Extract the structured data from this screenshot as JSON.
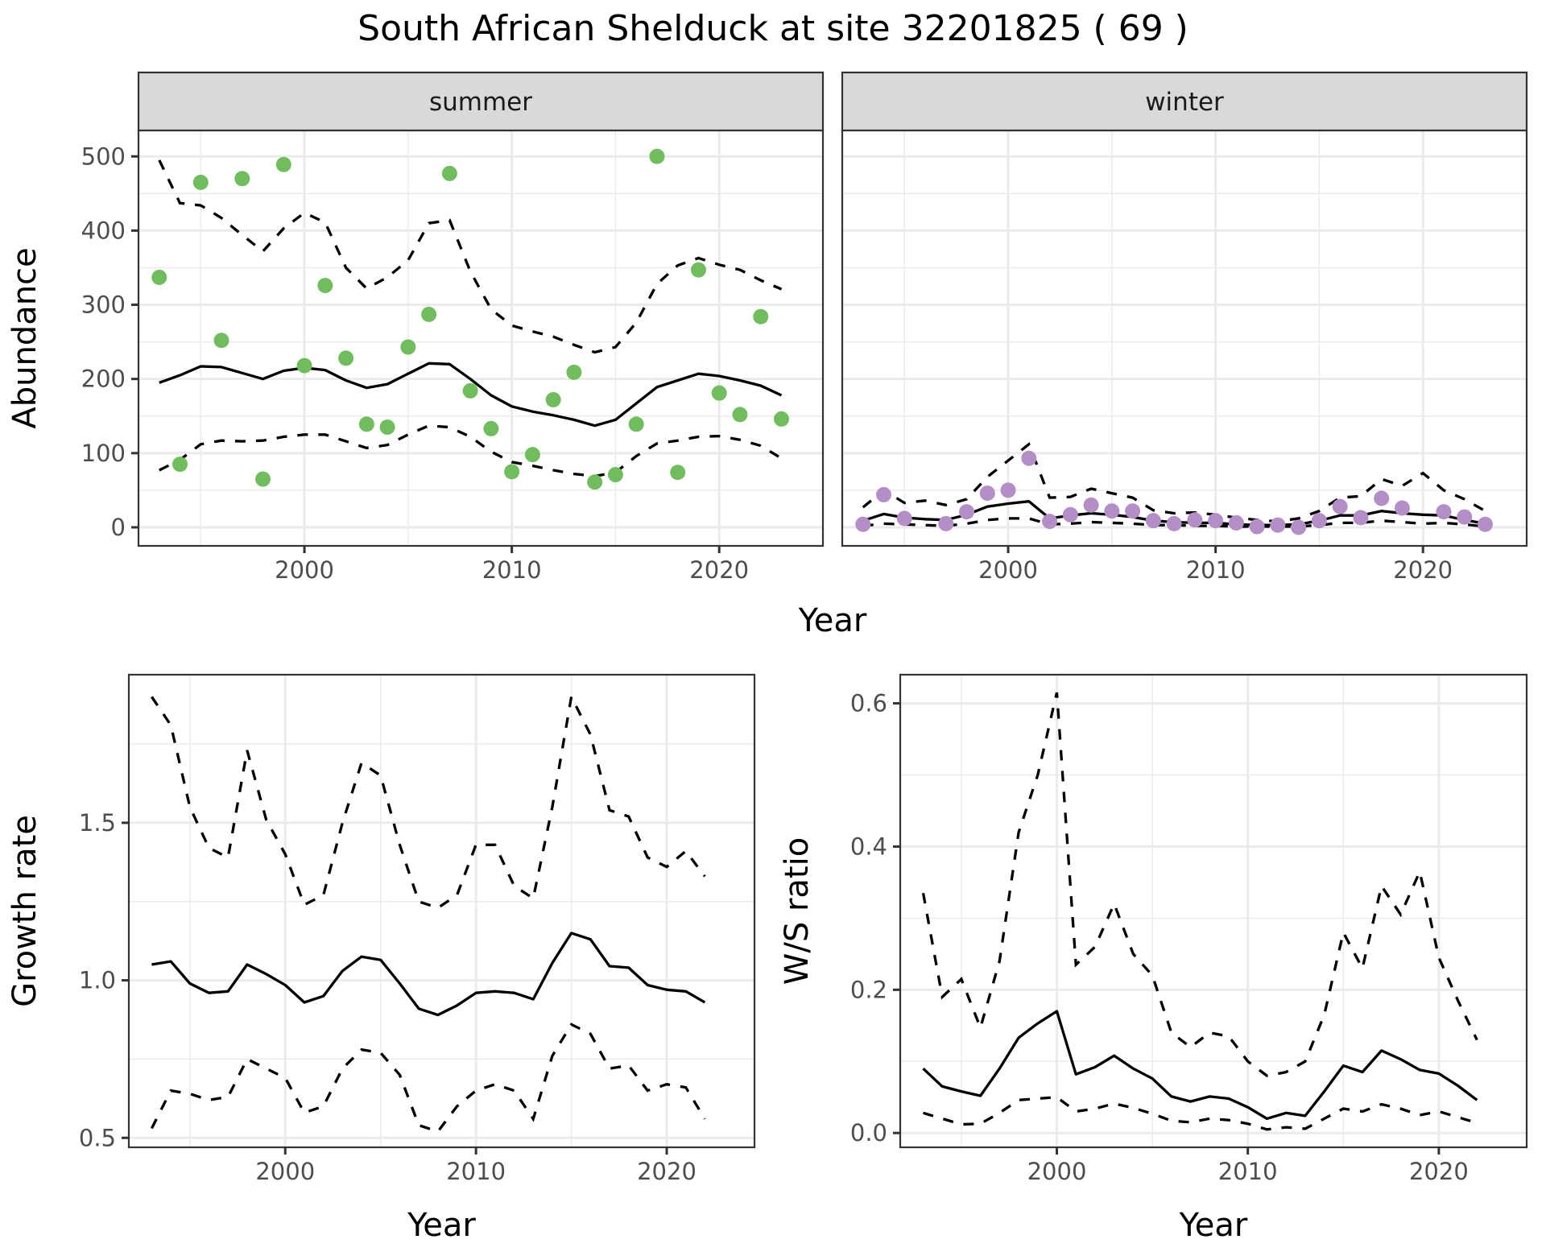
{
  "title": "South African Shelduck at site 32201825 ( 69 )",
  "colors": {
    "summer_points": "#70bd5e",
    "winter_points": "#b48ec6"
  },
  "chart_data": [
    {
      "type": "scatter",
      "panel": "summer",
      "title": "summer",
      "xlabel": "Year",
      "ylabel": "Abundance",
      "xlim": [
        1992,
        2025
      ],
      "ylim": [
        -25,
        535
      ],
      "xticks": [
        2000,
        2010,
        2020
      ],
      "yticks": [
        0,
        100,
        200,
        300,
        400,
        500
      ],
      "grid": true,
      "points": {
        "x": [
          1993,
          1994,
          1995,
          1996,
          1997,
          1998,
          1999,
          2000,
          2001,
          2002,
          2003,
          2004,
          2005,
          2006,
          2007,
          2008,
          2009,
          2010,
          2011,
          2012,
          2013,
          2014,
          2015,
          2016,
          2017,
          2018,
          2019,
          2020,
          2021,
          2022,
          2023
        ],
        "y": [
          337,
          85,
          465,
          252,
          470,
          65,
          489,
          218,
          326,
          228,
          139,
          135,
          243,
          287,
          477,
          184,
          133,
          75,
          98,
          172,
          209,
          61,
          71,
          139,
          500,
          74,
          347,
          181,
          152,
          284,
          146
        ]
      },
      "series": [
        {
          "name": "fit",
          "style": "solid",
          "x": [
            1993,
            1994,
            1995,
            1996,
            1997,
            1998,
            1999,
            2000,
            2001,
            2002,
            2003,
            2004,
            2005,
            2006,
            2007,
            2008,
            2009,
            2010,
            2011,
            2012,
            2013,
            2014,
            2015,
            2016,
            2017,
            2018,
            2019,
            2020,
            2021,
            2022,
            2023
          ],
          "y": [
            195,
            205,
            217,
            216,
            208,
            200,
            211,
            215,
            212,
            198,
            188,
            193,
            207,
            221,
            220,
            200,
            178,
            163,
            156,
            151,
            145,
            137,
            145,
            167,
            189,
            198,
            207,
            204,
            198,
            191,
            178
          ]
        },
        {
          "name": "upper",
          "style": "dashed",
          "x": [
            1993,
            1994,
            1995,
            1996,
            1997,
            1998,
            1999,
            2000,
            2001,
            2002,
            2003,
            2004,
            2005,
            2006,
            2007,
            2008,
            2009,
            2010,
            2011,
            2012,
            2013,
            2014,
            2015,
            2016,
            2017,
            2018,
            2019,
            2020,
            2021,
            2022,
            2023
          ],
          "y": [
            495,
            437,
            434,
            417,
            394,
            372,
            403,
            424,
            411,
            350,
            322,
            337,
            360,
            410,
            414,
            345,
            294,
            272,
            264,
            257,
            246,
            236,
            243,
            276,
            328,
            353,
            363,
            354,
            347,
            333,
            321
          ]
        },
        {
          "name": "lower",
          "style": "dashed",
          "x": [
            1993,
            1994,
            1995,
            1996,
            1997,
            1998,
            1999,
            2000,
            2001,
            2002,
            2003,
            2004,
            2005,
            2006,
            2007,
            2008,
            2009,
            2010,
            2011,
            2012,
            2013,
            2014,
            2015,
            2016,
            2017,
            2018,
            2019,
            2020,
            2021,
            2022,
            2023
          ],
          "y": [
            77,
            91,
            112,
            117,
            116,
            117,
            122,
            125,
            125,
            116,
            107,
            111,
            125,
            137,
            135,
            122,
            102,
            88,
            83,
            77,
            72,
            69,
            74,
            96,
            113,
            117,
            122,
            123,
            118,
            110,
            93
          ]
        }
      ]
    },
    {
      "type": "scatter",
      "panel": "winter",
      "title": "winter",
      "xlabel": "Year",
      "ylabel": "Abundance",
      "xlim": [
        1992,
        2025
      ],
      "ylim": [
        -25,
        535
      ],
      "xticks": [
        2000,
        2010,
        2020
      ],
      "yticks": [
        0,
        100,
        200,
        300,
        400,
        500
      ],
      "grid": true,
      "points": {
        "x": [
          1993,
          1994,
          1995,
          1997,
          1998,
          1999,
          2000,
          2001,
          2002,
          2003,
          2004,
          2005,
          2006,
          2007,
          2008,
          2009,
          2010,
          2011,
          2012,
          2013,
          2014,
          2015,
          2016,
          2017,
          2018,
          2019,
          2021,
          2022,
          2023
        ],
        "y": [
          4,
          44,
          12,
          5,
          21,
          46,
          50,
          93,
          8,
          17,
          30,
          22,
          22,
          9,
          5,
          10,
          9,
          6,
          1,
          3,
          0,
          9,
          28,
          13,
          39,
          26,
          21,
          14,
          4
        ]
      },
      "series": [
        {
          "name": "fit",
          "style": "solid",
          "x": [
            1993,
            1994,
            1995,
            1996,
            1997,
            1998,
            1999,
            2000,
            2001,
            2002,
            2003,
            2004,
            2005,
            2006,
            2007,
            2008,
            2009,
            2010,
            2011,
            2012,
            2013,
            2014,
            2015,
            2016,
            2017,
            2018,
            2019,
            2020,
            2021,
            2022,
            2023
          ],
          "y": [
            9,
            18,
            13,
            11,
            10,
            17,
            28,
            32,
            35,
            12,
            16,
            19,
            17,
            14,
            9,
            7,
            6,
            6,
            4,
            3,
            3,
            4,
            9,
            16,
            16,
            22,
            19,
            17,
            16,
            10,
            5
          ]
        },
        {
          "name": "upper",
          "style": "dashed",
          "x": [
            1993,
            1994,
            1995,
            1996,
            1997,
            1998,
            1999,
            2000,
            2001,
            2002,
            2003,
            2004,
            2005,
            2006,
            2007,
            2008,
            2009,
            2010,
            2011,
            2012,
            2013,
            2014,
            2015,
            2016,
            2017,
            2018,
            2019,
            2020,
            2021,
            2022,
            2023
          ],
          "y": [
            27,
            50,
            33,
            36,
            30,
            38,
            68,
            90,
            112,
            40,
            41,
            52,
            46,
            40,
            23,
            19,
            20,
            17,
            13,
            10,
            8,
            12,
            22,
            40,
            42,
            65,
            56,
            73,
            50,
            38,
            22
          ]
        },
        {
          "name": "lower",
          "style": "dashed",
          "x": [
            1993,
            1994,
            1995,
            1996,
            1997,
            1998,
            1999,
            2000,
            2001,
            2002,
            2003,
            2004,
            2005,
            2006,
            2007,
            2008,
            2009,
            2010,
            2011,
            2012,
            2013,
            2014,
            2015,
            2016,
            2017,
            2018,
            2019,
            2020,
            2021,
            2022,
            2023
          ],
          "y": [
            2,
            5,
            4,
            3,
            2,
            5,
            10,
            12,
            12,
            4,
            5,
            7,
            6,
            5,
            3,
            3,
            2,
            2,
            1,
            1,
            1,
            1,
            3,
            6,
            6,
            9,
            7,
            5,
            6,
            4,
            1
          ]
        }
      ]
    },
    {
      "type": "line",
      "panel": "growth",
      "xlabel": "Year",
      "ylabel": "Growth rate",
      "xlim": [
        1991.8,
        2024.6
      ],
      "ylim": [
        0.47,
        1.97
      ],
      "xticks": [
        2000,
        2010,
        2020
      ],
      "yticks": [
        0.5,
        1.0,
        1.5
      ],
      "grid": true,
      "series": [
        {
          "name": "fit",
          "style": "solid",
          "x": [
            1993,
            1994,
            1995,
            1996,
            1997,
            1998,
            1999,
            2000,
            2001,
            2002,
            2003,
            2004,
            2005,
            2006,
            2007,
            2008,
            2009,
            2010,
            2011,
            2012,
            2013,
            2014,
            2015,
            2016,
            2017,
            2018,
            2019,
            2020,
            2021,
            2022
          ],
          "y": [
            1.05,
            1.06,
            0.99,
            0.96,
            0.965,
            1.05,
            1.02,
            0.985,
            0.93,
            0.95,
            1.03,
            1.075,
            1.065,
            0.99,
            0.91,
            0.89,
            0.92,
            0.96,
            0.965,
            0.96,
            0.94,
            1.055,
            1.15,
            1.13,
            1.045,
            1.04,
            0.985,
            0.97,
            0.965,
            0.93
          ]
        },
        {
          "name": "upper",
          "style": "dashed",
          "x": [
            1993,
            1994,
            1995,
            1996,
            1997,
            1998,
            1999,
            2000,
            2001,
            2002,
            2003,
            2004,
            2005,
            2006,
            2007,
            2008,
            2009,
            2010,
            2011,
            2012,
            2013,
            2014,
            2015,
            2016,
            2017,
            2018,
            2019,
            2020,
            2021,
            2022
          ],
          "y": [
            1.9,
            1.81,
            1.55,
            1.42,
            1.39,
            1.73,
            1.51,
            1.4,
            1.24,
            1.27,
            1.5,
            1.69,
            1.65,
            1.43,
            1.25,
            1.23,
            1.27,
            1.43,
            1.43,
            1.3,
            1.26,
            1.55,
            1.9,
            1.78,
            1.54,
            1.52,
            1.39,
            1.36,
            1.41,
            1.33
          ]
        },
        {
          "name": "lower",
          "style": "dashed",
          "x": [
            1993,
            1994,
            1995,
            1996,
            1997,
            1998,
            1999,
            2000,
            2001,
            2002,
            2003,
            2004,
            2005,
            2006,
            2007,
            2008,
            2009,
            2010,
            2011,
            2012,
            2013,
            2014,
            2015,
            2016,
            2017,
            2018,
            2019,
            2020,
            2021,
            2022
          ],
          "y": [
            0.53,
            0.65,
            0.64,
            0.62,
            0.63,
            0.75,
            0.72,
            0.69,
            0.58,
            0.6,
            0.72,
            0.78,
            0.77,
            0.7,
            0.54,
            0.52,
            0.6,
            0.65,
            0.67,
            0.65,
            0.56,
            0.76,
            0.86,
            0.83,
            0.72,
            0.73,
            0.65,
            0.67,
            0.66,
            0.56
          ]
        }
      ]
    },
    {
      "type": "line",
      "panel": "ws_ratio",
      "xlabel": "Year",
      "ylabel": "W/S ratio",
      "xlim": [
        1991.8,
        2024.6
      ],
      "ylim": [
        -0.02,
        0.64
      ],
      "xticks": [
        2000,
        2010,
        2020
      ],
      "yticks": [
        0.0,
        0.2,
        0.4,
        0.6
      ],
      "grid": true,
      "series": [
        {
          "name": "fit",
          "style": "solid",
          "x": [
            1993,
            1994,
            1995,
            1996,
            1997,
            1998,
            1999,
            2000,
            2001,
            2002,
            2003,
            2004,
            2005,
            2006,
            2007,
            2008,
            2009,
            2010,
            2011,
            2012,
            2013,
            2014,
            2015,
            2016,
            2017,
            2018,
            2019,
            2020,
            2021,
            2022
          ],
          "y": [
            0.09,
            0.065,
            0.058,
            0.052,
            0.09,
            0.133,
            0.153,
            0.17,
            0.082,
            0.092,
            0.108,
            0.09,
            0.076,
            0.051,
            0.044,
            0.051,
            0.048,
            0.036,
            0.02,
            0.028,
            0.024,
            0.058,
            0.094,
            0.085,
            0.115,
            0.103,
            0.088,
            0.083,
            0.066,
            0.046
          ]
        },
        {
          "name": "upper",
          "style": "dashed",
          "x": [
            1993,
            1994,
            1995,
            1996,
            1997,
            1998,
            1999,
            2000,
            2001,
            2002,
            2003,
            2004,
            2005,
            2006,
            2007,
            2008,
            2009,
            2010,
            2011,
            2012,
            2013,
            2014,
            2015,
            2016,
            2017,
            2018,
            2019,
            2020,
            2021,
            2022
          ],
          "y": [
            0.335,
            0.19,
            0.215,
            0.147,
            0.24,
            0.42,
            0.5,
            0.615,
            0.235,
            0.26,
            0.32,
            0.25,
            0.22,
            0.14,
            0.12,
            0.14,
            0.135,
            0.1,
            0.08,
            0.085,
            0.1,
            0.165,
            0.28,
            0.23,
            0.345,
            0.305,
            0.365,
            0.245,
            0.185,
            0.13
          ]
        },
        {
          "name": "lower",
          "style": "dashed",
          "x": [
            1993,
            1994,
            1995,
            1996,
            1997,
            1998,
            1999,
            2000,
            2001,
            2002,
            2003,
            2004,
            2005,
            2006,
            2007,
            2008,
            2009,
            2010,
            2011,
            2012,
            2013,
            2014,
            2015,
            2016,
            2017,
            2018,
            2019,
            2020,
            2021,
            2022
          ],
          "y": [
            0.028,
            0.02,
            0.012,
            0.013,
            0.028,
            0.046,
            0.048,
            0.05,
            0.03,
            0.034,
            0.041,
            0.035,
            0.027,
            0.017,
            0.015,
            0.02,
            0.018,
            0.013,
            0.005,
            0.008,
            0.006,
            0.02,
            0.034,
            0.03,
            0.04,
            0.034,
            0.025,
            0.03,
            0.022,
            0.014
          ]
        }
      ]
    }
  ]
}
